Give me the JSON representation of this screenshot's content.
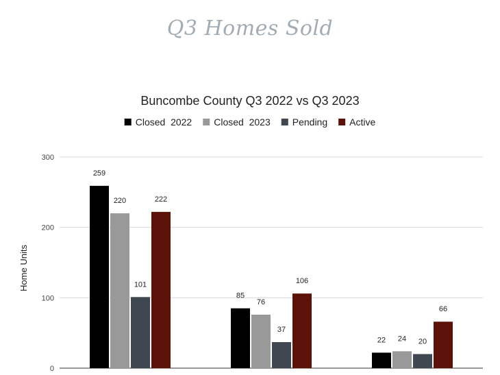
{
  "page": {
    "heading": "Q3 Homes Sold"
  },
  "colors": {
    "closed_2022": "#000000",
    "closed_2023": "#999999",
    "pending": "#3f4750",
    "active": "#5c1208",
    "heading": "#a3acb3",
    "grid": "#d9d9d9",
    "text": "#222222",
    "tick": "#444444"
  },
  "chart_data": {
    "type": "bar",
    "title": "Buncombe County Q3 2022 vs Q3 2023",
    "xlabel": "",
    "ylabel": "Home Units",
    "ylim": [
      0,
      300
    ],
    "yticks": [
      0,
      100,
      200,
      300
    ],
    "grid": true,
    "legend_position": "top",
    "categories": [
      "",
      "",
      ""
    ],
    "series": [
      {
        "name": "Closed  2022",
        "values": [
          259,
          85,
          22
        ]
      },
      {
        "name": "Closed  2023",
        "values": [
          220,
          76,
          24
        ]
      },
      {
        "name": "Pending",
        "values": [
          101,
          37,
          20
        ]
      },
      {
        "name": "Active",
        "values": [
          222,
          106,
          66
        ]
      }
    ]
  }
}
